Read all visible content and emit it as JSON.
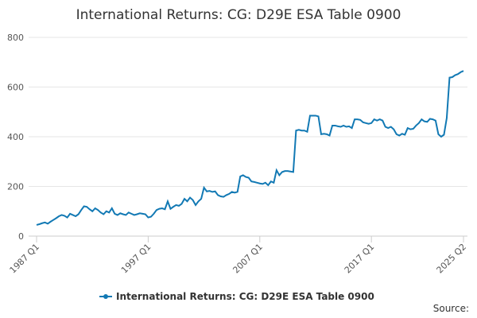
{
  "chart_data": {
    "type": "line",
    "title": "International Returns: CG: D29E ESA Table 0900",
    "categories": [
      "1987 Q1",
      null,
      null,
      null,
      null,
      null,
      null,
      null,
      null,
      null,
      null,
      null,
      null,
      null,
      null,
      null,
      null,
      null,
      null,
      null,
      null,
      null,
      null,
      null,
      null,
      null,
      null,
      null,
      null,
      null,
      null,
      null,
      null,
      null,
      null,
      null,
      null,
      null,
      null,
      null,
      "1997 Q1",
      null,
      null,
      null,
      null,
      null,
      null,
      null,
      null,
      null,
      null,
      null,
      null,
      null,
      null,
      null,
      null,
      null,
      null,
      null,
      null,
      null,
      null,
      null,
      null,
      null,
      null,
      null,
      null,
      null,
      null,
      null,
      null,
      null,
      null,
      null,
      null,
      null,
      null,
      null,
      "2007 Q1",
      null,
      null,
      null,
      null,
      null,
      null,
      null,
      null,
      null,
      null,
      null,
      null,
      null,
      null,
      null,
      null,
      null,
      null,
      null,
      null,
      null,
      null,
      null,
      null,
      null,
      null,
      null,
      null,
      null,
      null,
      null,
      null,
      null,
      null,
      null,
      null,
      null,
      null,
      null,
      "2017 Q1",
      null,
      null,
      null,
      null,
      null,
      null,
      null,
      null,
      null,
      null,
      null,
      null,
      null,
      null,
      null,
      null,
      null,
      null,
      null,
      null,
      null,
      null,
      null,
      null,
      null,
      null,
      null,
      null,
      null,
      null,
      null,
      null,
      "2025 Q2"
    ],
    "series": [
      {
        "name": "International Returns: CG: D29E ESA Table 0900",
        "color": "#1279b4",
        "values": [
          45,
          48,
          52,
          55,
          50,
          58,
          65,
          72,
          80,
          85,
          82,
          75,
          90,
          85,
          80,
          88,
          105,
          120,
          118,
          108,
          100,
          112,
          105,
          95,
          88,
          100,
          95,
          112,
          90,
          85,
          92,
          88,
          85,
          95,
          90,
          85,
          88,
          92,
          90,
          88,
          75,
          78,
          90,
          105,
          110,
          112,
          108,
          140,
          110,
          118,
          125,
          122,
          130,
          150,
          140,
          155,
          145,
          125,
          140,
          150,
          195,
          180,
          182,
          178,
          180,
          165,
          160,
          158,
          165,
          170,
          178,
          175,
          178,
          240,
          245,
          238,
          235,
          220,
          218,
          215,
          212,
          210,
          215,
          205,
          220,
          215,
          265,
          245,
          258,
          262,
          262,
          260,
          258,
          425,
          428,
          425,
          425,
          420,
          485,
          485,
          485,
          482,
          410,
          412,
          410,
          405,
          445,
          445,
          442,
          440,
          445,
          440,
          442,
          435,
          470,
          470,
          468,
          458,
          455,
          452,
          455,
          470,
          465,
          470,
          465,
          440,
          435,
          440,
          430,
          410,
          405,
          412,
          408,
          435,
          430,
          432,
          445,
          455,
          470,
          462,
          460,
          472,
          470,
          465,
          410,
          400,
          408,
          475,
          638,
          640,
          648,
          652,
          660,
          665
        ]
      }
    ],
    "ylim": [
      0,
      800
    ],
    "yticks": [
      0,
      200,
      400,
      600,
      800
    ],
    "grid": true,
    "legend": "bottom",
    "source": "Source:"
  }
}
